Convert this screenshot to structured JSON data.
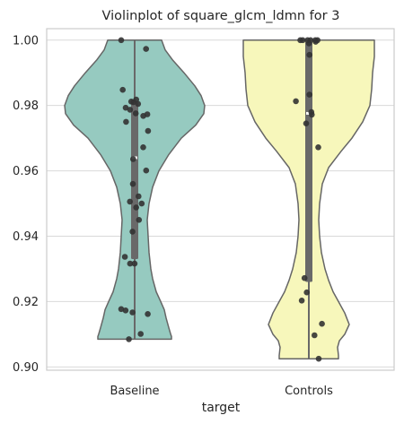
{
  "chart_data": {
    "type": "violin",
    "title": "Violinplot of square_glcm_ldmn for 3",
    "xlabel": "target",
    "ylabel": "",
    "categories": [
      "Baseline",
      "Controls"
    ],
    "ylim": [
      0.899,
      1.0035
    ],
    "yticks": [
      "0.90",
      "0.92",
      "0.94",
      "0.96",
      "0.98",
      "1.00"
    ],
    "grid": true,
    "colors": {
      "Baseline": "#96cac0",
      "Controls": "#f7f7bb",
      "outline": "#666666",
      "points": "#333333",
      "grid": "#d9d9d9"
    },
    "series": [
      {
        "name": "Baseline",
        "min": 0.9085,
        "q1": 0.933,
        "median": 0.964,
        "q3": 0.981,
        "max": 1.0,
        "points": [
          1.0,
          0.9973,
          0.9848,
          0.9818,
          0.9812,
          0.981,
          0.9805,
          0.9793,
          0.9787,
          0.9776,
          0.9773,
          0.9768,
          0.975,
          0.9722,
          0.9672,
          0.9636,
          0.9601,
          0.956,
          0.9522,
          0.9506,
          0.95,
          0.9488,
          0.945,
          0.9414,
          0.9337,
          0.9316,
          0.9316,
          0.9177,
          0.9173,
          0.9167,
          0.9162,
          0.9101,
          0.9085
        ]
      },
      {
        "name": "Controls",
        "min": 0.9025,
        "q1": 0.926,
        "median": 0.9776,
        "q3": 0.9995,
        "max": 1.0,
        "points": [
          1.0,
          1.0,
          1.0,
          1.0,
          1.0,
          1.0,
          0.9995,
          0.999,
          0.9955,
          0.9833,
          0.9813,
          0.978,
          0.9772,
          0.9745,
          0.9672,
          0.9272,
          0.9228,
          0.9203,
          0.9132,
          0.9097,
          0.9025
        ]
      }
    ]
  }
}
